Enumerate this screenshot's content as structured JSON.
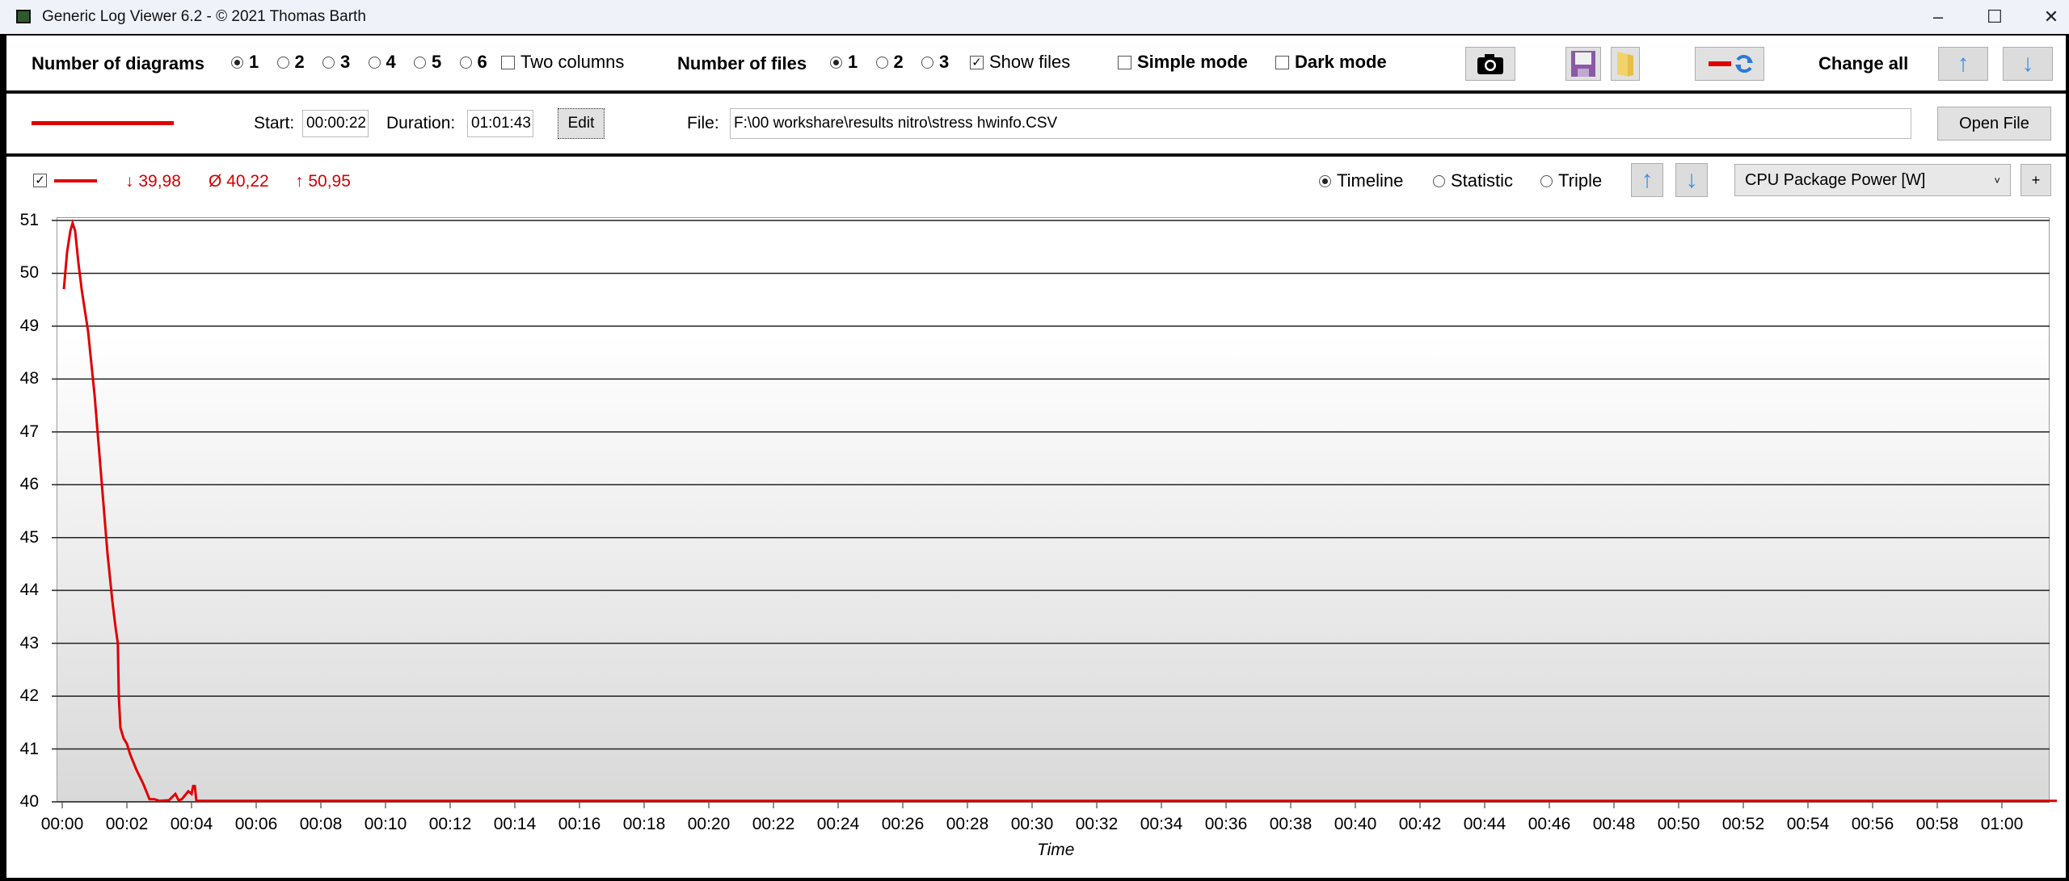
{
  "window": {
    "title": "Generic Log Viewer 6.2 - © 2021 Thomas Barth",
    "controls": [
      "minimize",
      "maximize",
      "close"
    ]
  },
  "toolbar": {
    "diagrams_label": "Number of diagrams",
    "diagram_options": [
      "1",
      "2",
      "3",
      "4",
      "5",
      "6"
    ],
    "diagrams_selected": "1",
    "two_columns": "Two columns",
    "two_columns_checked": false,
    "files_label": "Number of files",
    "file_options": [
      "1",
      "2",
      "3"
    ],
    "files_selected": "1",
    "show_files": "Show files",
    "show_files_checked": true,
    "simple_mode": "Simple mode",
    "simple_mode_checked": false,
    "dark_mode": "Dark mode",
    "dark_mode_checked": false,
    "change_all": "Change all",
    "icons": [
      "camera-icon",
      "save-icon",
      "folder-icon",
      "color-swap-icon",
      "arrow-up-icon",
      "arrow-down-icon"
    ]
  },
  "file_row": {
    "line_color": "#e00000",
    "start_label": "Start:",
    "start": "00:00:22",
    "duration_label": "Duration:",
    "duration": "01:01:43",
    "edit": "Edit",
    "file_label": "File:",
    "file_path": "F:\\00 workshare\\results nitro\\stress hwinfo.CSV",
    "open_file": "Open File"
  },
  "diagram": {
    "checked": true,
    "min": "↓ 39,98",
    "avg": "Ø 40,22",
    "max": "↑ 50,95",
    "modes": [
      "Timeline",
      "Statistic",
      "Triple"
    ],
    "mode_selected": "Timeline",
    "sensor": "CPU Package Power [W]",
    "add": "+"
  },
  "chart_data": {
    "type": "line",
    "xlabel": "Time",
    "ylabel": "",
    "ylim": [
      40,
      51
    ],
    "xlim_minutes": [
      0,
      61.72
    ],
    "grid": "horizontal",
    "yticks": [
      "51",
      "50",
      "49",
      "48",
      "47",
      "46",
      "45",
      "44",
      "43",
      "42",
      "41",
      "40"
    ],
    "xticks": [
      "00:00",
      "00:02",
      "00:04",
      "00:06",
      "00:08",
      "00:10",
      "00:12",
      "00:14",
      "00:16",
      "00:18",
      "00:20",
      "00:22",
      "00:24",
      "00:26",
      "00:28",
      "00:30",
      "00:32",
      "00:34",
      "00:36",
      "00:38",
      "00:40",
      "00:42",
      "00:44",
      "00:46",
      "00:48",
      "00:50",
      "00:52",
      "00:54",
      "00:56",
      "00:58",
      "01:00"
    ],
    "series": [
      {
        "color": "#e00000",
        "x_minutes": [
          0.05,
          0.15,
          0.25,
          0.32,
          0.4,
          0.5,
          0.6,
          0.8,
          1.0,
          1.2,
          1.4,
          1.55,
          1.65,
          1.72,
          1.75,
          1.8,
          1.9,
          2.0,
          2.1,
          2.2,
          2.3,
          2.5,
          2.6,
          2.7,
          2.85,
          3.0,
          3.3,
          3.5,
          3.6,
          3.7,
          3.9,
          4.0,
          4.05,
          4.1,
          4.15,
          10,
          20,
          30,
          40,
          50,
          61.7
        ],
        "values": [
          49.7,
          50.4,
          50.8,
          50.95,
          50.8,
          50.2,
          49.7,
          48.9,
          47.7,
          46.2,
          44.7,
          43.8,
          43.3,
          43.0,
          42.0,
          41.4,
          41.2,
          41.1,
          40.9,
          40.75,
          40.6,
          40.35,
          40.2,
          40.05,
          40.05,
          40.02,
          40.03,
          40.15,
          40.03,
          40.05,
          40.2,
          40.15,
          40.3,
          40.3,
          40.02,
          40.02,
          40.02,
          40.02,
          40.02,
          40.02,
          40.02
        ]
      }
    ]
  }
}
